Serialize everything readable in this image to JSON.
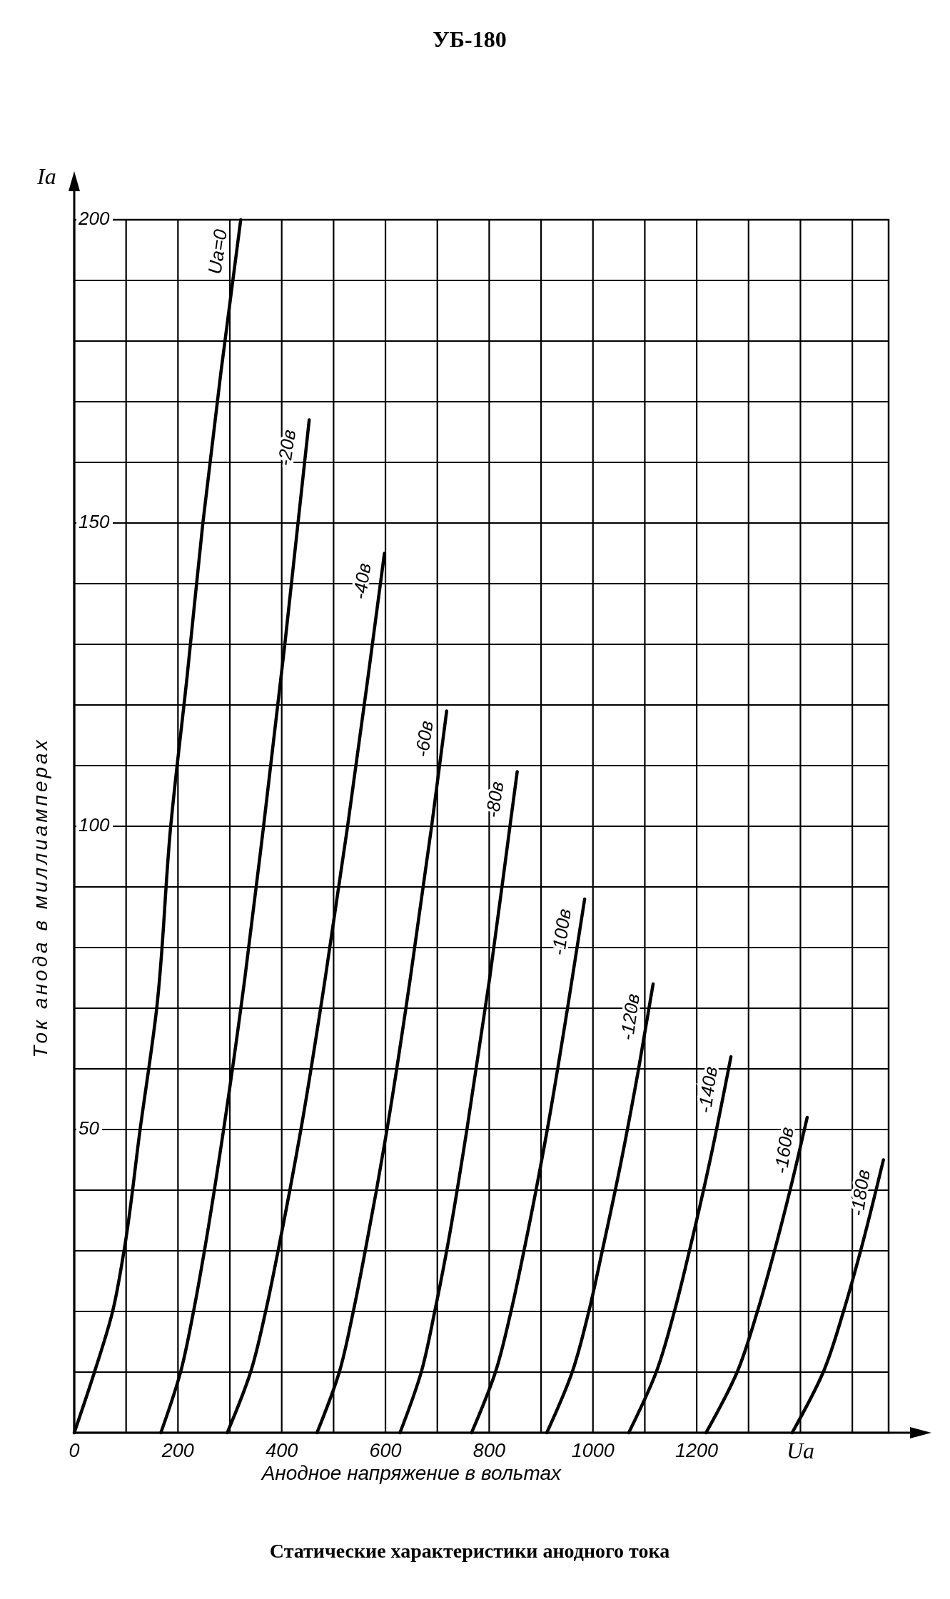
{
  "chart_data": {
    "type": "line",
    "title": "УБ-180",
    "xlabel": "Анодное напряжение в вольтах",
    "ylabel": "Ток анода в миллиамперах",
    "annotations": [
      "Ia",
      "Ua",
      "Статические характеристики анодного тока"
    ],
    "xlim": [
      0,
      1570
    ],
    "ylim": [
      0,
      200
    ],
    "xticks": [
      0,
      {
        "value": 100,
        "label": null
      },
      200,
      {
        "value": 300,
        "label": null
      },
      400,
      {
        "value": 500,
        "label": null
      },
      600,
      {
        "value": 700,
        "label": null
      },
      800,
      {
        "value": 900,
        "label": null
      },
      1000,
      {
        "value": 1100,
        "label": null
      },
      1200,
      {
        "value": 1300,
        "label": null
      },
      {
        "value": 1400,
        "label": null
      },
      {
        "value": 1500,
        "label": null
      }
    ],
    "yticks": [
      {
        "value": 0,
        "label": null
      },
      {
        "value": 10,
        "label": null
      },
      {
        "value": 20,
        "label": null
      },
      {
        "value": 30,
        "label": null
      },
      {
        "value": 40,
        "label": null
      },
      50,
      {
        "value": 60,
        "label": null
      },
      {
        "value": 70,
        "label": null
      },
      {
        "value": 80,
        "label": null
      },
      {
        "value": 90,
        "label": null
      },
      100,
      {
        "value": 110,
        "label": null
      },
      {
        "value": 120,
        "label": null
      },
      {
        "value": 130,
        "label": null
      },
      {
        "value": 140,
        "label": null
      },
      150,
      {
        "value": 160,
        "label": null
      },
      {
        "value": 170,
        "label": null
      },
      {
        "value": 180,
        "label": null
      },
      {
        "value": 190,
        "label": null
      },
      200
    ],
    "grid": true,
    "series": [
      {
        "name": "Ua=0",
        "color": "#000000",
        "x": [
          0,
          39,
          74,
          96,
          127,
          159,
          186,
          218,
          248,
          283,
          321
        ],
        "values": [
          0,
          10,
          20,
          30,
          50,
          70,
          100,
          125,
          150,
          175,
          200
        ]
      },
      {
        "name": "-20в",
        "color": "#000000",
        "x": [
          167,
          205,
          230,
          251,
          288,
          329,
          365,
          406,
          453
        ],
        "values": [
          0,
          10,
          20,
          30,
          50,
          75,
          100,
          130,
          167
        ]
      },
      {
        "name": "-40в",
        "color": "#000000",
        "x": [
          295,
          340,
          369,
          393,
          437,
          484,
          527,
          567,
          598
        ],
        "values": [
          0,
          10,
          20,
          30,
          50,
          75,
          100,
          125,
          145
        ]
      },
      {
        "name": "-60в",
        "color": "#000000",
        "x": [
          468,
          511,
          538,
          561,
          603,
          648,
          689,
          718
        ],
        "values": [
          0,
          10,
          20,
          30,
          50,
          75,
          100,
          119
        ]
      },
      {
        "name": "-80в",
        "color": "#000000",
        "x": [
          628,
          669,
          695,
          718,
          757,
          801,
          840,
          854
        ],
        "values": [
          0,
          10,
          20,
          30,
          50,
          75,
          100,
          109
        ]
      },
      {
        "name": "-100в",
        "color": "#000000",
        "x": [
          766,
          812,
          842,
          867,
          912,
          951,
          984
        ],
        "values": [
          0,
          10,
          20,
          30,
          50,
          70,
          88
        ]
      },
      {
        "name": "-120в",
        "color": "#000000",
        "x": [
          911,
          960,
          992,
          1018,
          1055,
          1088,
          1116
        ],
        "values": [
          0,
          10,
          20,
          30,
          45,
          60,
          74
        ]
      },
      {
        "name": "-140в",
        "color": "#000000",
        "x": [
          1069,
          1122,
          1157,
          1186,
          1226,
          1266
        ],
        "values": [
          0,
          10,
          20,
          30,
          45,
          62
        ]
      },
      {
        "name": "-160в",
        "color": "#000000",
        "x": [
          1218,
          1278,
          1317,
          1350,
          1380,
          1413
        ],
        "values": [
          0,
          10,
          20,
          30,
          40,
          52
        ]
      },
      {
        "name": "-180в",
        "color": "#000000",
        "x": [
          1384,
          1444,
          1483,
          1516,
          1560
        ],
        "values": [
          0,
          10,
          20,
          30,
          45
        ]
      }
    ]
  }
}
